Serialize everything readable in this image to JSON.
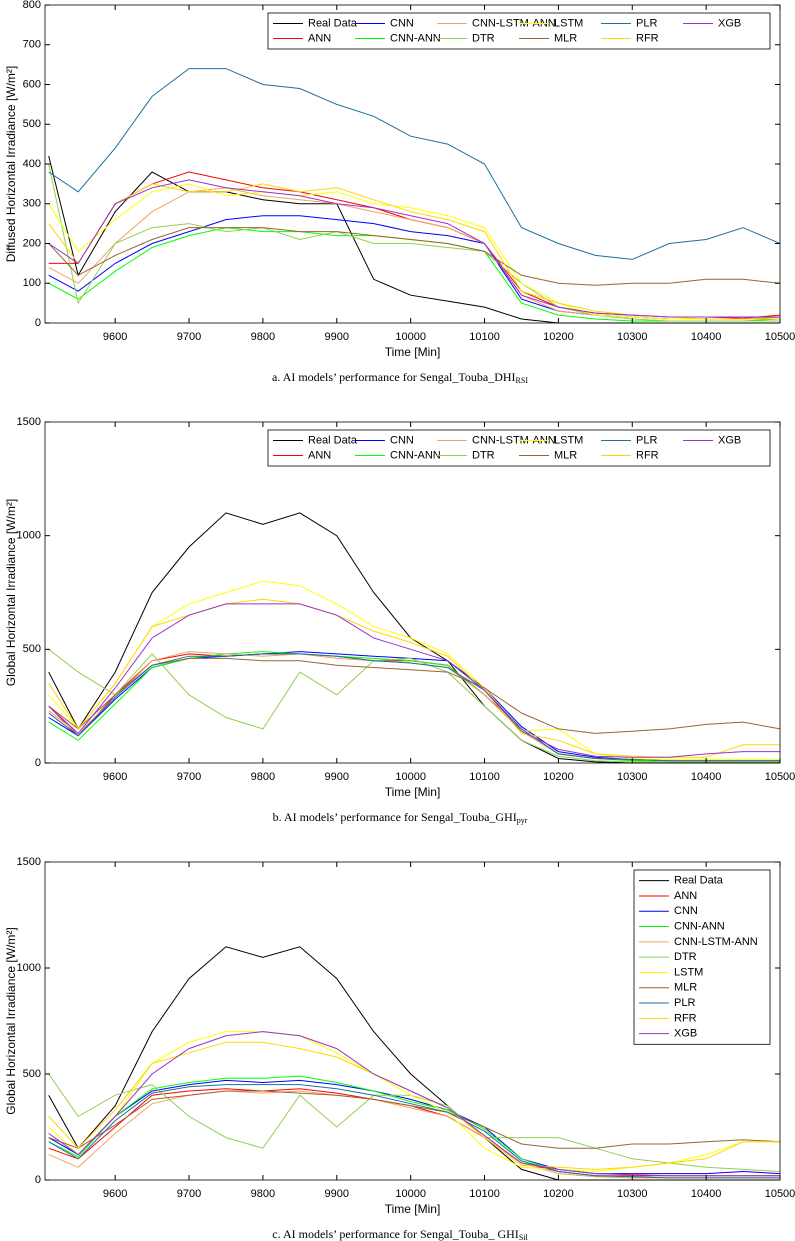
{
  "chart_data": [
    {
      "type": "line",
      "ylabel": "Diffused Horizontal Irradiance [W/m²]",
      "xlabel": "Time [Min]",
      "caption": "a.  AI models’ performance for Sengal_Touba_DHI",
      "caption_sub": "RSI",
      "legend": "upper right",
      "legend_columns": 6,
      "xlim": [
        9505,
        10500
      ],
      "xticks": [
        9600,
        9700,
        9800,
        9900,
        10000,
        10100,
        10200,
        10300,
        10400,
        10500
      ],
      "ylim": [
        0,
        800
      ],
      "yticks": [
        0,
        100,
        200,
        300,
        400,
        500,
        600,
        700,
        800
      ],
      "x": [
        9510,
        9550,
        9600,
        9650,
        9700,
        9750,
        9800,
        9850,
        9900,
        9950,
        10000,
        10050,
        10100,
        10150,
        10200,
        10250,
        10300,
        10350,
        10400,
        10450,
        10500
      ],
      "series": [
        {
          "name": "Real Data",
          "color": "#000000",
          "values": [
            420,
            120,
            280,
            380,
            330,
            330,
            310,
            300,
            300,
            110,
            70,
            55,
            40,
            10,
            0,
            0,
            0,
            0,
            0,
            0,
            0
          ]
        },
        {
          "name": "ANN",
          "color": "#ff0000",
          "values": [
            150,
            150,
            300,
            350,
            380,
            360,
            340,
            330,
            310,
            290,
            260,
            240,
            200,
            80,
            40,
            25,
            20,
            15,
            15,
            12,
            20
          ]
        },
        {
          "name": "CNN",
          "color": "#0000ff",
          "values": [
            120,
            80,
            150,
            200,
            230,
            260,
            270,
            270,
            260,
            250,
            230,
            220,
            200,
            60,
            30,
            20,
            15,
            10,
            10,
            10,
            15
          ]
        },
        {
          "name": "CNN-ANN",
          "color": "#00ff00",
          "values": [
            100,
            60,
            130,
            190,
            220,
            240,
            230,
            230,
            220,
            220,
            210,
            200,
            180,
            50,
            20,
            10,
            5,
            5,
            5,
            5,
            10
          ]
        },
        {
          "name": "CNN-LSTM-ANN",
          "color": "#f4a460",
          "values": [
            140,
            100,
            200,
            280,
            330,
            340,
            320,
            310,
            300,
            280,
            260,
            240,
            200,
            70,
            30,
            20,
            15,
            10,
            10,
            10,
            15
          ]
        },
        {
          "name": "DTR",
          "color": "#92d050",
          "values": [
            400,
            50,
            200,
            240,
            250,
            230,
            240,
            210,
            230,
            200,
            200,
            190,
            180,
            100,
            40,
            20,
            10,
            5,
            5,
            5,
            5
          ]
        },
        {
          "name": "LSTM",
          "color": "#ffff00",
          "values": [
            300,
            180,
            260,
            330,
            350,
            320,
            330,
            320,
            330,
            300,
            290,
            270,
            240,
            100,
            50,
            20,
            15,
            10,
            10,
            10,
            10
          ]
        },
        {
          "name": "MLR",
          "color": "#996633",
          "values": [
            200,
            120,
            170,
            210,
            240,
            240,
            240,
            230,
            230,
            220,
            210,
            200,
            180,
            120,
            100,
            95,
            100,
            100,
            110,
            110,
            100
          ]
        },
        {
          "name": "PLR",
          "color": "#1f6f9f",
          "values": [
            380,
            330,
            440,
            570,
            640,
            640,
            600,
            590,
            550,
            520,
            470,
            450,
            400,
            240,
            200,
            170,
            160,
            200,
            210,
            240,
            200
          ]
        },
        {
          "name": "RFR",
          "color": "#ffd700",
          "values": [
            250,
            150,
            300,
            350,
            330,
            330,
            350,
            330,
            340,
            310,
            280,
            260,
            230,
            80,
            50,
            30,
            20,
            15,
            10,
            10,
            10
          ]
        },
        {
          "name": "XGB",
          "color": "#9933cc",
          "values": [
            200,
            150,
            300,
            340,
            360,
            340,
            330,
            320,
            300,
            290,
            270,
            250,
            200,
            70,
            40,
            25,
            20,
            15,
            15,
            15,
            15
          ]
        }
      ]
    },
    {
      "type": "line",
      "ylabel": "Global Horizontal Irradiance [W/m²]",
      "xlabel": "Time [Min]",
      "caption": "b.  AI models’ performance for Sengal_Touba_GHI",
      "caption_sub": "pyr",
      "legend": "upper right",
      "legend_columns": 6,
      "xlim": [
        9505,
        10500
      ],
      "xticks": [
        9600,
        9700,
        9800,
        9900,
        10000,
        10100,
        10200,
        10300,
        10400,
        10500
      ],
      "ylim": [
        0,
        1500
      ],
      "yticks": [
        0,
        500,
        1000,
        1500
      ],
      "x": [
        9510,
        9550,
        9600,
        9650,
        9700,
        9750,
        9800,
        9850,
        9900,
        9950,
        10000,
        10050,
        10100,
        10150,
        10200,
        10250,
        10300,
        10350,
        10400,
        10450,
        10500
      ],
      "series": [
        {
          "name": "Real Data",
          "color": "#000000",
          "values": [
            400,
            150,
            400,
            750,
            950,
            1100,
            1050,
            1100,
            1000,
            750,
            550,
            450,
            250,
            100,
            20,
            5,
            0,
            0,
            0,
            0,
            0
          ]
        },
        {
          "name": "ANN",
          "color": "#ff0000",
          "values": [
            250,
            120,
            300,
            450,
            480,
            470,
            480,
            480,
            470,
            450,
            450,
            430,
            300,
            150,
            40,
            20,
            15,
            10,
            10,
            10,
            10
          ]
        },
        {
          "name": "CNN",
          "color": "#0000ff",
          "values": [
            200,
            120,
            280,
            420,
            460,
            470,
            480,
            490,
            480,
            470,
            460,
            450,
            330,
            160,
            50,
            25,
            15,
            10,
            10,
            10,
            10
          ]
        },
        {
          "name": "CNN-ANN",
          "color": "#00ff00",
          "values": [
            180,
            100,
            260,
            420,
            460,
            480,
            490,
            480,
            470,
            460,
            450,
            430,
            300,
            140,
            40,
            20,
            10,
            5,
            5,
            5,
            5
          ]
        },
        {
          "name": "CNN-LSTM-ANN",
          "color": "#f4a460",
          "values": [
            230,
            130,
            290,
            450,
            490,
            480,
            470,
            480,
            460,
            450,
            440,
            420,
            300,
            140,
            40,
            20,
            15,
            10,
            10,
            10,
            10
          ]
        },
        {
          "name": "DTR",
          "color": "#92d050",
          "values": [
            500,
            400,
            300,
            480,
            300,
            200,
            150,
            400,
            300,
            450,
            460,
            400,
            250,
            100,
            30,
            10,
            5,
            5,
            5,
            5,
            5
          ]
        },
        {
          "name": "LSTM",
          "color": "#ffff00",
          "values": [
            300,
            150,
            350,
            600,
            700,
            750,
            800,
            780,
            700,
            600,
            550,
            480,
            330,
            140,
            150,
            40,
            20,
            15,
            15,
            15,
            15
          ]
        },
        {
          "name": "MLR",
          "color": "#996633",
          "values": [
            250,
            150,
            300,
            430,
            460,
            460,
            450,
            450,
            430,
            420,
            410,
            400,
            330,
            220,
            150,
            130,
            140,
            150,
            170,
            180,
            150
          ]
        },
        {
          "name": "PLR",
          "color": "#1f6f9f",
          "values": [
            220,
            120,
            290,
            430,
            470,
            470,
            480,
            480,
            470,
            450,
            440,
            420,
            320,
            150,
            40,
            20,
            15,
            10,
            10,
            10,
            10
          ]
        },
        {
          "name": "RFR",
          "color": "#ffd700",
          "values": [
            350,
            150,
            350,
            600,
            650,
            700,
            720,
            700,
            650,
            580,
            530,
            470,
            320,
            130,
            100,
            40,
            30,
            25,
            25,
            80,
            80
          ]
        },
        {
          "name": "XGB",
          "color": "#9933cc",
          "values": [
            250,
            130,
            330,
            550,
            650,
            700,
            700,
            700,
            650,
            550,
            500,
            450,
            320,
            140,
            60,
            30,
            25,
            25,
            40,
            50,
            50
          ]
        }
      ]
    },
    {
      "type": "line",
      "ylabel": "Global Horizontal Irradiance [W/m²]",
      "xlabel": "Time [Min]",
      "caption": "c.  AI models’ performance for Sengal_Touba_ GHI",
      "caption_sub": "Sil",
      "legend": "upper right",
      "legend_columns": 1,
      "xlim": [
        9505,
        10500
      ],
      "xticks": [
        9600,
        9700,
        9800,
        9900,
        10000,
        10100,
        10200,
        10300,
        10400,
        10500
      ],
      "ylim": [
        0,
        1500
      ],
      "yticks": [
        0,
        500,
        1000,
        1500
      ],
      "x": [
        9510,
        9550,
        9600,
        9650,
        9700,
        9750,
        9800,
        9850,
        9900,
        9950,
        10000,
        10050,
        10100,
        10150,
        10200,
        10250,
        10300,
        10350,
        10400,
        10450,
        10500
      ],
      "series": [
        {
          "name": "Real Data",
          "color": "#000000",
          "values": [
            400,
            150,
            350,
            700,
            950,
            1100,
            1050,
            1100,
            950,
            700,
            500,
            350,
            200,
            50,
            0,
            0,
            0,
            0,
            0,
            0,
            0
          ]
        },
        {
          "name": "ANN",
          "color": "#ff0000",
          "values": [
            150,
            100,
            250,
            400,
            420,
            430,
            420,
            430,
            410,
            380,
            350,
            300,
            200,
            80,
            40,
            20,
            20,
            20,
            20,
            20,
            20
          ]
        },
        {
          "name": "CNN",
          "color": "#0000ff",
          "values": [
            200,
            120,
            300,
            420,
            450,
            470,
            460,
            470,
            450,
            420,
            380,
            330,
            250,
            100,
            50,
            30,
            30,
            30,
            30,
            40,
            30
          ]
        },
        {
          "name": "CNN-ANN",
          "color": "#00ff00",
          "values": [
            180,
            110,
            300,
            430,
            460,
            480,
            480,
            490,
            460,
            420,
            370,
            330,
            240,
            100,
            40,
            20,
            15,
            10,
            10,
            10,
            10
          ]
        },
        {
          "name": "CNN-LSTM-ANN",
          "color": "#f4a460",
          "values": [
            120,
            60,
            220,
            360,
            400,
            420,
            410,
            420,
            400,
            380,
            340,
            300,
            200,
            80,
            30,
            15,
            10,
            10,
            10,
            10,
            10
          ]
        },
        {
          "name": "DTR",
          "color": "#92d050",
          "values": [
            500,
            300,
            400,
            450,
            300,
            200,
            150,
            400,
            250,
            400,
            400,
            350,
            200,
            200,
            200,
            150,
            100,
            80,
            60,
            50,
            40
          ]
        },
        {
          "name": "LSTM",
          "color": "#ffff00",
          "values": [
            250,
            120,
            300,
            550,
            650,
            700,
            700,
            680,
            600,
            500,
            400,
            320,
            150,
            60,
            50,
            40,
            60,
            80,
            120,
            180,
            180
          ]
        },
        {
          "name": "MLR",
          "color": "#996633",
          "values": [
            200,
            150,
            260,
            380,
            400,
            420,
            420,
            410,
            400,
            380,
            350,
            320,
            250,
            170,
            150,
            150,
            170,
            170,
            180,
            190,
            180
          ]
        },
        {
          "name": "PLR",
          "color": "#1f6f9f",
          "values": [
            180,
            100,
            280,
            410,
            440,
            450,
            450,
            450,
            430,
            400,
            360,
            320,
            230,
            90,
            40,
            20,
            15,
            10,
            10,
            10,
            10
          ]
        },
        {
          "name": "RFR",
          "color": "#ffd700",
          "values": [
            300,
            150,
            330,
            550,
            600,
            650,
            650,
            620,
            580,
            500,
            420,
            340,
            200,
            70,
            60,
            50,
            60,
            80,
            100,
            180,
            180
          ]
        },
        {
          "name": "XGB",
          "color": "#9933cc",
          "values": [
            220,
            120,
            300,
            500,
            620,
            680,
            700,
            680,
            620,
            500,
            420,
            340,
            210,
            80,
            50,
            30,
            25,
            20,
            20,
            20,
            20
          ]
        }
      ]
    }
  ]
}
